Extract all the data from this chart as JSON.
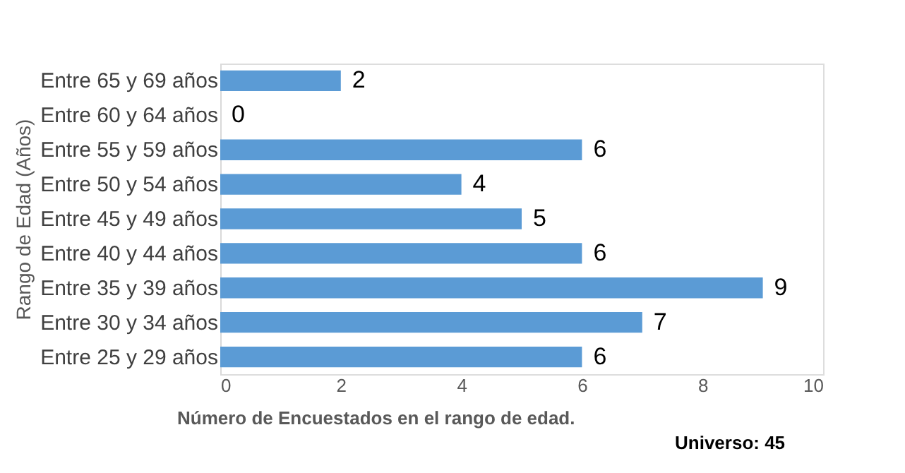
{
  "chart_data": {
    "type": "bar",
    "orientation": "horizontal",
    "xlabel": "Número de Encuestados en el rango de edad.",
    "ylabel": "Rango de Edad (Años)",
    "categories": [
      "Entre 65 y 69 años",
      "Entre 60 y 64 años",
      "Entre 55 y 59 años",
      "Entre 50 y 54 años",
      "Entre 45 y 49 años",
      "Entre 40 y 44 años",
      "Entre 35 y 39 años",
      "Entre 30 y 34 años",
      "Entre 25 y 29 años"
    ],
    "values": [
      2,
      0,
      6,
      4,
      5,
      6,
      9,
      7,
      6
    ],
    "color": "#5b9bd5",
    "xlim": [
      0,
      10
    ],
    "xticks": [
      0,
      2,
      4,
      6,
      8,
      10
    ],
    "data_labels": true,
    "grid": false,
    "annotations": [
      "Universo: 45"
    ]
  }
}
